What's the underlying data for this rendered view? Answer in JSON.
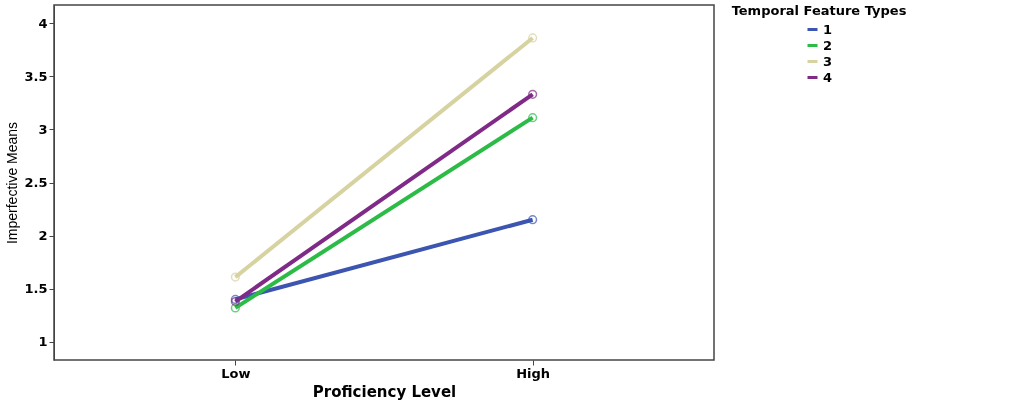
{
  "chart_data": {
    "type": "line",
    "xlabel": "Proficiency Level",
    "ylabel": "Imperfective Means",
    "legend_title": "Temporal Feature Types",
    "categories": [
      "Low",
      "High"
    ],
    "series": [
      {
        "name": "1",
        "color": "#3b55b0",
        "values": [
          1.4,
          2.15
        ]
      },
      {
        "name": "2",
        "color": "#2dbb48",
        "values": [
          1.32,
          3.11
        ]
      },
      {
        "name": "3",
        "color": "#d6d3a0",
        "values": [
          1.61,
          3.86
        ]
      },
      {
        "name": "4",
        "color": "#7e2a86",
        "values": [
          1.38,
          3.33
        ]
      }
    ],
    "ylim": [
      0.83,
      4.17
    ],
    "yticks": [
      1,
      1.5,
      2,
      2.5,
      3,
      3.5,
      4
    ],
    "grid": false,
    "legend": "top right",
    "marker": "circle",
    "line_style": "solid"
  }
}
